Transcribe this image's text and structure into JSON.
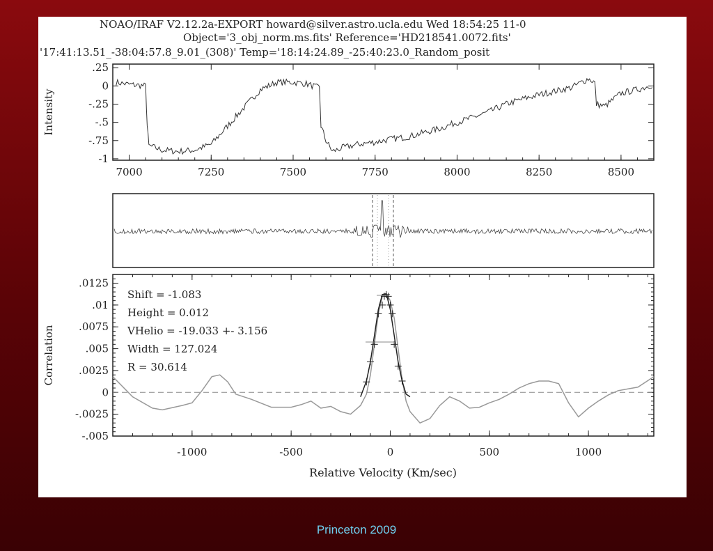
{
  "header": {
    "line1": "NOAO/IRAF V2.12.2a-EXPORT howard@silver.astro.ucla.edu Wed 18:54:25 11-0",
    "line2": "Object='3_obj_norm.ms.fits' Reference='HD218541.0072.fits'",
    "line3": "'17:41:13.51_-38:04:57.8_9.01_(308)' Temp='18:14:24.89_-25:40:23.0_Random_posit"
  },
  "footer": "Princeton 2009",
  "colors": {
    "background": "#6e0508",
    "footer_text": "#6fd0f0",
    "trace": "#333333",
    "gray_curve": "#999999"
  },
  "chart_data": [
    {
      "type": "line",
      "panel": "spectrum",
      "ylabel": "Intensity",
      "xlabel": "",
      "xlim": [
        6950,
        8600
      ],
      "ylim": [
        -1.02,
        0.3
      ],
      "x_ticks": [
        "7000",
        "7250",
        "7500",
        "7750",
        "8000",
        "8250",
        "8500"
      ],
      "y_ticks": [
        ".25",
        "0",
        "-.25",
        "-.5",
        "-.75",
        "-1"
      ],
      "x": [
        6960,
        7000,
        7050,
        7055,
        7060,
        7100,
        7150,
        7200,
        7250,
        7300,
        7350,
        7400,
        7450,
        7500,
        7540,
        7580,
        7585,
        7600,
        7620,
        7650,
        7700,
        7750,
        7800,
        7850,
        7900,
        7950,
        8000,
        8050,
        8100,
        8150,
        8200,
        8250,
        8300,
        8350,
        8400,
        8420,
        8425,
        8450,
        8500,
        8550,
        8600
      ],
      "y": [
        0.05,
        0.02,
        0.0,
        -0.55,
        -0.82,
        -0.88,
        -0.9,
        -0.88,
        -0.8,
        -0.55,
        -0.3,
        -0.05,
        0.05,
        0.05,
        0.03,
        -0.03,
        -0.55,
        -0.75,
        -0.9,
        -0.85,
        -0.8,
        -0.77,
        -0.73,
        -0.7,
        -0.64,
        -0.58,
        -0.5,
        -0.43,
        -0.35,
        -0.25,
        -0.18,
        -0.12,
        -0.07,
        -0.02,
        0.1,
        0.05,
        -0.25,
        -0.28,
        -0.1,
        -0.05,
        0.02
      ]
    },
    {
      "type": "line",
      "panel": "correlation-residual",
      "note": "",
      "x": [],
      "y": []
    },
    {
      "type": "line",
      "panel": "correlation",
      "xlabel": "Relative Velocity (Km/sec)",
      "ylabel": "Correlation",
      "xlim": [
        -1400,
        1330
      ],
      "ylim": [
        -0.005,
        0.0135
      ],
      "x_ticks": [
        "-1000",
        "-500",
        "0",
        "500",
        "1000"
      ],
      "y_ticks": [
        ".0125",
        ".01",
        ".0075",
        ".005",
        ".0025",
        "0",
        "-.0025",
        "-.005"
      ],
      "series": [
        {
          "name": "",
          "x": [
            -1400,
            -1300,
            -1200,
            -1150,
            -1050,
            -1000,
            -950,
            -900,
            -860,
            -820,
            -780,
            -700,
            -600,
            -500,
            -450,
            -400,
            -350,
            -300,
            -250,
            -200,
            -150,
            -120,
            -100,
            -80,
            -60,
            -40,
            -20,
            0,
            20,
            40,
            60,
            80,
            100,
            150,
            200,
            250,
            300,
            350,
            400,
            450,
            500,
            550,
            600,
            650,
            700,
            750,
            800,
            850,
            900,
            950,
            1000,
            1050,
            1100,
            1150,
            1200,
            1250,
            1330
          ],
          "y": [
            0.0018,
            -0.0005,
            -0.0018,
            -0.002,
            -0.0015,
            -0.0012,
            0.0002,
            0.0018,
            0.002,
            0.0012,
            -0.0002,
            -0.0008,
            -0.0017,
            -0.0017,
            -0.0014,
            -0.001,
            -0.0018,
            -0.0016,
            -0.0022,
            -0.0025,
            -0.0015,
            -0.0002,
            0.002,
            0.0055,
            0.009,
            0.011,
            0.0113,
            0.0105,
            0.0085,
            0.005,
            0.0015,
            -0.001,
            -0.0022,
            -0.0035,
            -0.003,
            -0.0015,
            -0.0005,
            -0.001,
            -0.0018,
            -0.0017,
            -0.0012,
            -0.0008,
            -0.0002,
            0.0005,
            0.001,
            0.0013,
            0.0013,
            0.001,
            -0.0012,
            -0.0028,
            -0.0018,
            -0.001,
            -0.0003,
            0.0002,
            0.0004,
            0.0006,
            0.0018
          ]
        }
      ],
      "fit": {
        "x": [
          -150,
          -120,
          -100,
          -80,
          -60,
          -40,
          -20,
          0,
          20,
          40,
          60,
          80,
          100
        ],
        "y": [
          -0.0005,
          0.0013,
          0.0035,
          0.0065,
          0.0095,
          0.0112,
          0.0113,
          0.0095,
          0.0065,
          0.0035,
          0.0013,
          -0.0002,
          -0.0005
        ],
        "markers_x": [
          -120,
          -100,
          -80,
          -60,
          -40,
          -30,
          -20,
          -10,
          0,
          10,
          20,
          40,
          60
        ],
        "markers_y": [
          0.0012,
          0.0035,
          0.0055,
          0.009,
          0.01,
          0.011,
          0.0112,
          0.011,
          0.01,
          0.009,
          0.0055,
          0.003,
          0.0013
        ]
      },
      "zero_line": 0,
      "annotations": [
        "Shift = -1.083",
        "Height = 0.012",
        "VHelio = -19.033 +- 3.156",
        "Width = 127.024",
        "R = 30.614"
      ]
    }
  ]
}
